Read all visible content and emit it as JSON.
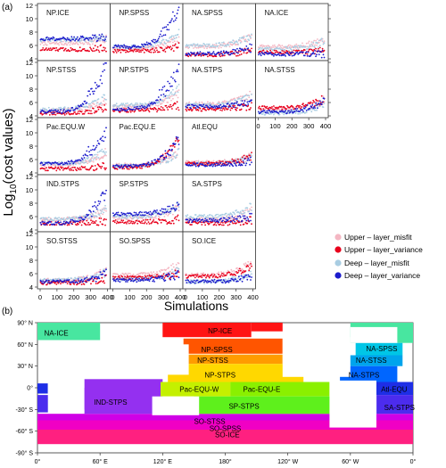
{
  "panel_a_label": "(a)",
  "panel_b_label": "(b)",
  "colors": {
    "upper_misfit": "#f4b7c3",
    "upper_variance": "#e8001c",
    "deep_misfit": "#a9cde2",
    "deep_variance": "#1c1ccc"
  },
  "chart_data": [
    {
      "type": "scatter",
      "ylabel": "Log10(cost values)",
      "ylabel_base": "Log",
      "ylabel_sub": "10",
      "ylabel_rest": "(cost values)",
      "xlabel": "Simulations",
      "xlim": [
        0,
        400
      ],
      "ylim": [
        4,
        12
      ],
      "x_ticks": [
        "0",
        "100",
        "200",
        "300",
        "400"
      ],
      "y_ticks": [
        "4",
        "6",
        "8",
        "10",
        "12"
      ],
      "legend_placement": "right",
      "series": [
        {
          "name": "Upper – layer_misfit",
          "key": "upper_misfit"
        },
        {
          "name": "Upper – layer_variance",
          "key": "upper_variance"
        },
        {
          "name": "Deep – layer_misfit",
          "key": "deep_misfit"
        },
        {
          "name": "Deep – layer_variance",
          "key": "deep_variance"
        }
      ],
      "panels": [
        {
          "label": "NP.ICE",
          "row": 0,
          "col": 0,
          "levels": {
            "upper_misfit": [
              6.3,
              6.9
            ],
            "upper_variance": [
              5.4,
              5.6
            ],
            "deep_misfit": [
              6.8,
              7.3
            ],
            "deep_variance": [
              7.0,
              7.2
            ]
          }
        },
        {
          "label": "NP.SPSS",
          "row": 0,
          "col": 1,
          "levels": {
            "upper_misfit": [
              5.6,
              7.0
            ],
            "upper_variance": [
              5.2,
              5.8
            ],
            "deep_misfit": [
              5.8,
              8.0
            ],
            "deep_variance": [
              5.8,
              11.5
            ]
          }
        },
        {
          "label": "NA.SPSS",
          "row": 0,
          "col": 2,
          "levels": {
            "upper_misfit": [
              5.8,
              7.6
            ],
            "upper_variance": [
              4.6,
              5.3
            ],
            "deep_misfit": [
              6.0,
              7.6
            ],
            "deep_variance": [
              4.8,
              5.6
            ]
          }
        },
        {
          "label": "NA.ICE",
          "row": 0,
          "col": 3,
          "levels": {
            "upper_misfit": [
              5.8,
              7.0
            ],
            "upper_variance": [
              5.0,
              5.3
            ],
            "deep_misfit": [
              5.5,
              6.6
            ],
            "deep_variance": [
              4.7,
              4.8
            ]
          }
        },
        {
          "label": "NP.STSS",
          "row": 1,
          "col": 0,
          "levels": {
            "upper_misfit": [
              4.8,
              6.5
            ],
            "upper_variance": [
              4.4,
              5.3
            ],
            "deep_misfit": [
              5.0,
              7.0
            ],
            "deep_variance": [
              4.6,
              11.6
            ]
          }
        },
        {
          "label": "NP.STPS",
          "row": 1,
          "col": 1,
          "levels": {
            "upper_misfit": [
              5.4,
              7.5
            ],
            "upper_variance": [
              4.8,
              5.6
            ],
            "deep_misfit": [
              5.6,
              8.2
            ],
            "deep_variance": [
              5.0,
              11.4
            ]
          }
        },
        {
          "label": "NA.STPS",
          "row": 1,
          "col": 2,
          "levels": {
            "upper_misfit": [
              5.8,
              7.2
            ],
            "upper_variance": [
              5.0,
              5.6
            ],
            "deep_misfit": [
              5.6,
              7.0
            ],
            "deep_variance": [
              5.4,
              6.2
            ]
          }
        },
        {
          "label": "NA.STSS",
          "row": 1,
          "col": 3,
          "levels": {
            "upper_misfit": [
              5.0,
              6.4
            ],
            "upper_variance": [
              5.2,
              6.6
            ],
            "deep_misfit": [
              4.4,
              6.0
            ],
            "deep_variance": [
              4.6,
              6.2
            ]
          }
        },
        {
          "label": "Pac.EQU.W",
          "row": 2,
          "col": 0,
          "levels": {
            "upper_misfit": [
              5.2,
              7.2
            ],
            "upper_variance": [
              4.6,
              5.0
            ],
            "deep_misfit": [
              5.4,
              7.6
            ],
            "deep_variance": [
              5.4,
              10.4
            ]
          }
        },
        {
          "label": "Pac.EQU.E",
          "row": 2,
          "col": 1,
          "levels": {
            "upper_misfit": [
              5.2,
              7.2
            ],
            "upper_variance": [
              4.8,
              9.6
            ],
            "deep_misfit": [
              5.0,
              7.0
            ],
            "deep_variance": [
              5.0,
              9.2
            ]
          }
        },
        {
          "label": "Atl.EQU",
          "row": 2,
          "col": 2,
          "levels": {
            "upper_misfit": [
              5.6,
              6.4
            ],
            "upper_variance": [
              5.4,
              6.6
            ],
            "deep_misfit": [
              5.4,
              6.2
            ],
            "deep_variance": [
              5.2,
              5.8
            ]
          }
        },
        {
          "label": "IND.STPS",
          "row": 3,
          "col": 0,
          "levels": {
            "upper_misfit": [
              5.6,
              7.0
            ],
            "upper_variance": [
              5.0,
              5.4
            ],
            "deep_misfit": [
              5.6,
              7.2
            ],
            "deep_variance": [
              5.0,
              9.6
            ]
          }
        },
        {
          "label": "SP.STPS",
          "row": 3,
          "col": 1,
          "levels": {
            "upper_misfit": [
              5.8,
              7.4
            ],
            "upper_variance": [
              5.2,
              5.6
            ],
            "deep_misfit": [
              6.0,
              7.8
            ],
            "deep_variance": [
              6.4,
              7.6
            ]
          }
        },
        {
          "label": "SA.STPS",
          "row": 3,
          "col": 2,
          "levels": {
            "upper_misfit": [
              5.6,
              6.8
            ],
            "upper_variance": [
              5.0,
              5.4
            ],
            "deep_misfit": [
              6.0,
              7.6
            ],
            "deep_variance": [
              5.4,
              6.0
            ]
          }
        },
        {
          "label": "SO.STSS",
          "row": 4,
          "col": 0,
          "levels": {
            "upper_misfit": [
              5.0,
              6.6
            ],
            "upper_variance": [
              4.6,
              5.2
            ],
            "deep_misfit": [
              5.0,
              6.2
            ],
            "deep_variance": [
              4.8,
              6.0
            ]
          }
        },
        {
          "label": "SO.SPSS",
          "row": 4,
          "col": 1,
          "levels": {
            "upper_misfit": [
              5.8,
              7.6
            ],
            "upper_variance": [
              5.4,
              6.0
            ],
            "deep_misfit": [
              5.2,
              6.6
            ],
            "deep_variance": [
              5.0,
              6.0
            ]
          }
        },
        {
          "label": "SO.ICE",
          "row": 4,
          "col": 2,
          "levels": {
            "upper_misfit": [
              5.8,
              7.8
            ],
            "upper_variance": [
              5.6,
              7.2
            ],
            "deep_misfit": [
              4.8,
              6.2
            ],
            "deep_variance": [
              4.8,
              5.6
            ]
          }
        }
      ]
    },
    {
      "type": "heatmap",
      "x_ticks": [
        "0°",
        "60° E",
        "120° E",
        "180°",
        "120° W",
        "60° W",
        "0°"
      ],
      "y_ticks": [
        "90° N",
        "60° N",
        "30° N",
        "0°",
        "-30° S",
        "-60° S",
        "-90° S"
      ],
      "xlim": [
        0,
        360
      ],
      "ylim": [
        -90,
        90
      ],
      "regions": [
        {
          "label": "NA-ICE",
          "color": "#48e6a0",
          "lon": 18,
          "lat": 76
        },
        {
          "label": "NP-ICE",
          "color": "#ff1414",
          "lon": 175,
          "lat": 79
        },
        {
          "label": "NP-SPSS",
          "color": "#ff5500",
          "lon": 172,
          "lat": 53
        },
        {
          "label": "NP-STSS",
          "color": "#ff9c00",
          "lon": 168,
          "lat": 38
        },
        {
          "label": "NP-STPS",
          "color": "#ffd800",
          "lon": 175,
          "lat": 18
        },
        {
          "label": "Pac-EQU-W",
          "color": "#c4f000",
          "lon": 155,
          "lat": -2
        },
        {
          "label": "Pac-EQU-E",
          "color": "#8af000",
          "lon": 215,
          "lat": -2
        },
        {
          "label": "SP-STPS",
          "color": "#5ef01c",
          "lon": 198,
          "lat": -25
        },
        {
          "label": "IND-STPS",
          "color": "#9430f0",
          "lon": 70,
          "lat": -20
        },
        {
          "label": "NA-SPSS",
          "color": "#00c6e6",
          "lon": 330,
          "lat": 54
        },
        {
          "label": "NA-STSS",
          "color": "#00a4ec",
          "lon": 320,
          "lat": 38
        },
        {
          "label": "NA-STPS",
          "color": "#0066ff",
          "lon": 313,
          "lat": 18
        },
        {
          "label": "Atl-EQU",
          "color": "#1e2ee6",
          "lon": 342,
          "lat": -2
        },
        {
          "label": "SA-STPS",
          "color": "#4c2cee",
          "lon": 347,
          "lat": -27
        },
        {
          "label": "SO-STSS",
          "color": "#d000e6",
          "lon": 165,
          "lat": -46
        },
        {
          "label": "SO-SPSS",
          "color": "#f000c4",
          "lon": 180,
          "lat": -56
        },
        {
          "label": "SO-ICE",
          "color": "#ff2080",
          "lon": 182,
          "lat": -65
        }
      ]
    }
  ]
}
